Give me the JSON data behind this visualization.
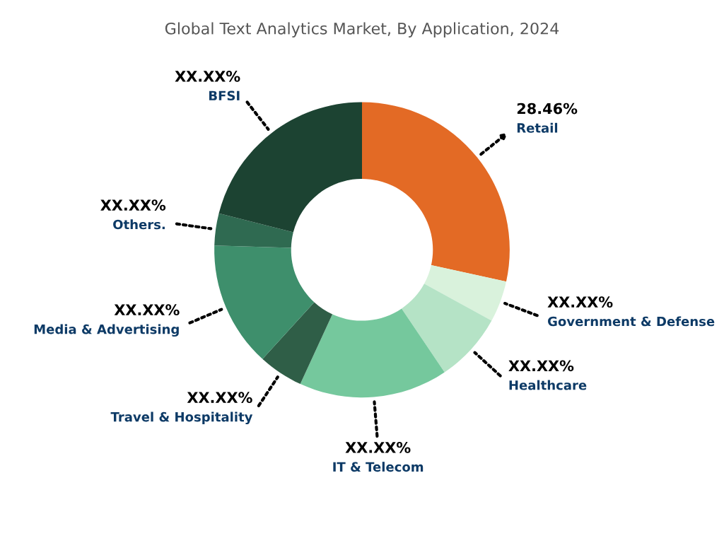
{
  "chart_data": {
    "type": "donut",
    "title": "Global Text Analytics Market, By Application, 2024",
    "categories": [
      "Retail",
      "Government & Defense",
      "Healthcare",
      "IT & Telecom",
      "Travel & Hospitality",
      "Media & Advertising",
      "Others.",
      "BFSI"
    ],
    "values": [
      28.46,
      4.5,
      7.6,
      16.3,
      4.9,
      13.7,
      3.5,
      21.04
    ],
    "value_labels": [
      "28.46%",
      "XX.XX%",
      "XX.XX%",
      "XX.XX%",
      "XX.XX%",
      "XX.XX%",
      "XX.XX%",
      "XX.XX%"
    ],
    "colors": [
      "#e36a25",
      "#d9f2dc",
      "#b5e3c6",
      "#75c89d",
      "#2f5e47",
      "#3e8f6c",
      "#2f6a51",
      "#1c4332"
    ],
    "legend": false
  }
}
